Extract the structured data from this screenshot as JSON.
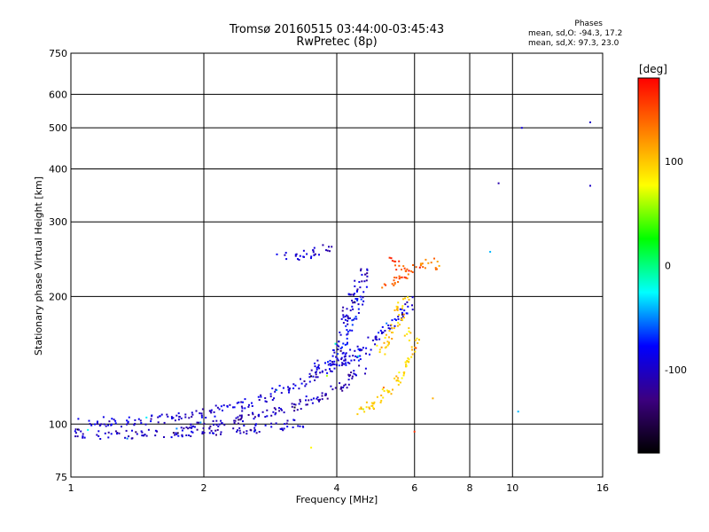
{
  "chart_data": {
    "type": "scatter",
    "title": "Tromsø 20160515 03:44:00-03:45:43",
    "subtitle": "RwPretec (8p)",
    "xlabel": "Frequency [MHz]",
    "ylabel": "Stationary phase Virtual Height [km]",
    "x_scale": "log",
    "y_scale": "log",
    "xlim": [
      1,
      16
    ],
    "ylim": [
      75,
      750
    ],
    "x_ticks": [
      1,
      2,
      4,
      6,
      8,
      10,
      16
    ],
    "x_tick_labels": [
      "1",
      "2",
      "4",
      "6",
      "8",
      "10",
      "16"
    ],
    "y_ticks": [
      75,
      100,
      200,
      300,
      400,
      500,
      600,
      750
    ],
    "y_tick_labels": [
      "75",
      "100",
      "200",
      "300",
      "400",
      "500",
      "600",
      "750"
    ],
    "grid": true,
    "stats": {
      "header": "Phases",
      "line1": "mean, sd,O: -94.3, 17.2",
      "line2": "mean, sd,X:  97.3, 23.0"
    },
    "colorbar": {
      "label": "[deg]",
      "range": [
        -180,
        180
      ],
      "ticks": [
        100,
        0,
        -100
      ],
      "tick_labels": [
        "100",
        "0",
        "-100"
      ],
      "colormap": "rainbow",
      "stops": [
        "#000000",
        "#3c0080",
        "#0000ff",
        "#00ffff",
        "#00ff00",
        "#ffff00",
        "#ff8000",
        "#ff0000"
      ]
    },
    "series": [
      {
        "trace": [
          [
            1.0,
            95
          ],
          [
            1.2,
            94
          ],
          [
            1.5,
            95
          ],
          [
            2.0,
            96
          ],
          [
            2.5,
            97
          ],
          [
            2.8,
            98
          ],
          [
            3.0,
            99
          ],
          [
            3.3,
            101
          ]
        ],
        "phase": -100
      },
      {
        "trace": [
          [
            1.05,
            102
          ],
          [
            1.3,
            101
          ],
          [
            1.6,
            103
          ],
          [
            2.0,
            106
          ],
          [
            2.4,
            110
          ],
          [
            2.8,
            116
          ],
          [
            3.2,
            123
          ],
          [
            3.6,
            131
          ],
          [
            4.0,
            138
          ],
          [
            4.4,
            150
          ]
        ],
        "phase": -95
      },
      {
        "trace": [
          [
            1.8,
            97
          ],
          [
            2.2,
            101
          ],
          [
            2.6,
            104
          ],
          [
            3.0,
            108
          ],
          [
            3.4,
            112
          ],
          [
            3.8,
            118
          ],
          [
            4.2,
            125
          ],
          [
            4.6,
            134
          ]
        ],
        "phase": -105
      },
      {
        "trace": [
          [
            3.5,
            139
          ],
          [
            3.8,
            138
          ],
          [
            4.0,
            137
          ],
          [
            4.2,
            140
          ],
          [
            4.5,
            145
          ],
          [
            4.8,
            155
          ],
          [
            5.2,
            168
          ],
          [
            5.6,
            180
          ],
          [
            6.0,
            195
          ]
        ],
        "phase": -90
      },
      {
        "trace": [
          [
            4.1,
            170
          ],
          [
            4.2,
            180
          ],
          [
            4.3,
            192
          ],
          [
            4.4,
            205
          ],
          [
            4.5,
            215
          ],
          [
            4.6,
            225
          ],
          [
            4.7,
            232
          ]
        ],
        "phase": -100
      },
      {
        "trace": [
          [
            3.9,
            135
          ],
          [
            4.1,
            155
          ],
          [
            4.3,
            175
          ],
          [
            4.5,
            195
          ],
          [
            4.6,
            210
          ]
        ],
        "phase": -85
      },
      {
        "trace": [
          [
            3.0,
            247
          ],
          [
            3.3,
            250
          ],
          [
            3.6,
            255
          ],
          [
            3.9,
            262
          ]
        ],
        "phase": -100
      },
      {
        "trace": [
          [
            4.5,
            105
          ],
          [
            4.8,
            110
          ],
          [
            5.1,
            117
          ],
          [
            5.4,
            124
          ],
          [
            5.7,
            133
          ],
          [
            5.9,
            143
          ],
          [
            6.0,
            155
          ],
          [
            5.8,
            165
          ]
        ],
        "phase": 95
      },
      {
        "trace": [
          [
            5.0,
            145
          ],
          [
            5.2,
            160
          ],
          [
            5.5,
            175
          ],
          [
            5.6,
            190
          ],
          [
            5.7,
            200
          ]
        ],
        "phase": 100
      },
      {
        "trace": [
          [
            5.2,
            210
          ],
          [
            5.4,
            218
          ],
          [
            5.6,
            222
          ],
          [
            5.8,
            226
          ],
          [
            5.7,
            232
          ],
          [
            5.5,
            240
          ],
          [
            5.3,
            244
          ]
        ],
        "phase": 150
      },
      {
        "trace": [
          [
            6.0,
            235
          ],
          [
            6.3,
            238
          ],
          [
            6.6,
            240
          ],
          [
            6.9,
            236
          ]
        ],
        "phase": 130
      }
    ],
    "isolated_points": [
      {
        "x": 9.3,
        "y": 370,
        "phase": -110
      },
      {
        "x": 15.0,
        "y": 365,
        "phase": -100
      },
      {
        "x": 15.0,
        "y": 515,
        "phase": -100
      },
      {
        "x": 10.5,
        "y": 500,
        "phase": -90
      },
      {
        "x": 8.9,
        "y": 255,
        "phase": -40
      },
      {
        "x": 10.3,
        "y": 107,
        "phase": -40
      },
      {
        "x": 3.8,
        "y": 130,
        "phase": 60
      },
      {
        "x": 3.5,
        "y": 88,
        "phase": 80
      },
      {
        "x": 6.0,
        "y": 96,
        "phase": 160
      },
      {
        "x": 6.6,
        "y": 115,
        "phase": 110
      }
    ]
  }
}
